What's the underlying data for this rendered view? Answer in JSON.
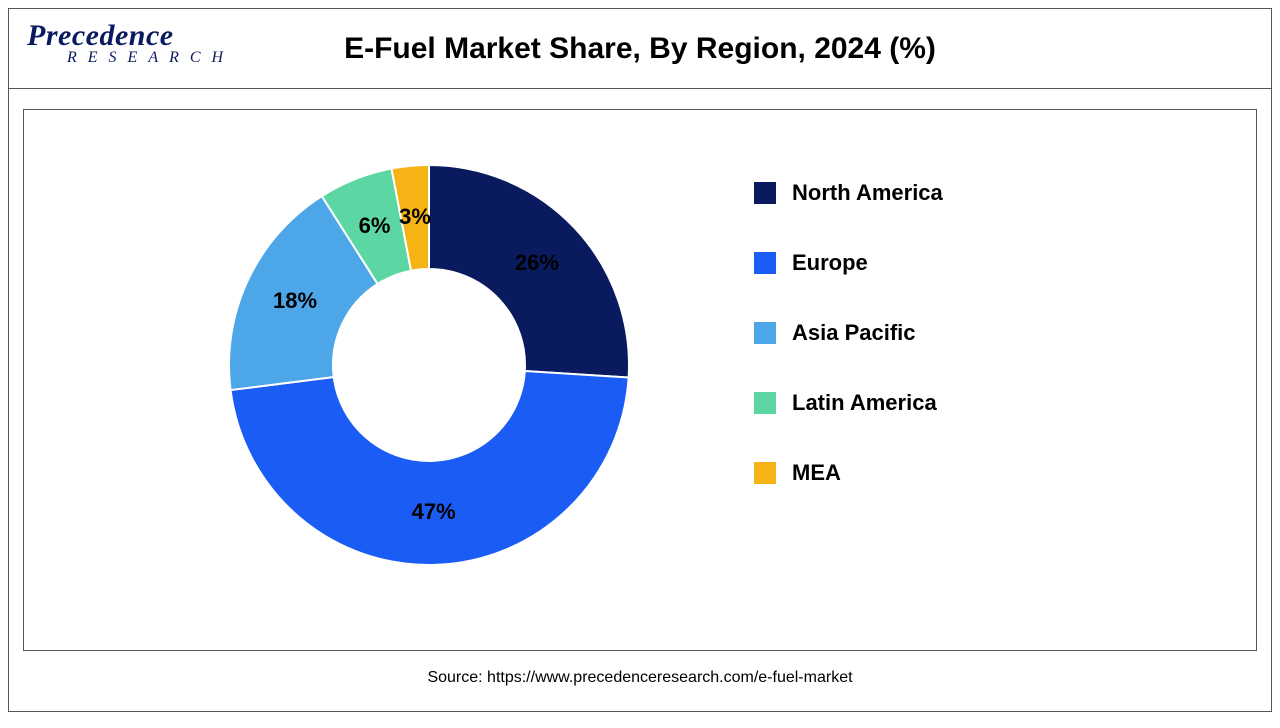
{
  "logo": {
    "main": "Precedence",
    "sub": "RESEARCH"
  },
  "chart": {
    "title": "E-Fuel Market Share, By Region, 2024 (%)",
    "type": "donut",
    "inner_radius_ratio": 0.48,
    "outer_radius": 200,
    "start_angle_deg": 0,
    "background_color": "#ffffff",
    "border_color": "#555555",
    "slice_border_color": "#ffffff",
    "slice_border_width": 2,
    "label_fontsize": 22,
    "label_fontweight": "bold",
    "label_color": "#000000",
    "slices": [
      {
        "name": "North America",
        "value": 26,
        "label": "26%",
        "color": "#0a1a5e"
      },
      {
        "name": "Europe",
        "value": 47,
        "label": "47%",
        "color": "#1b5cf5"
      },
      {
        "name": "Asia Pacific",
        "value": 18,
        "label": "18%",
        "color": "#4ca6e8"
      },
      {
        "name": "Latin America",
        "value": 6,
        "label": "6%",
        "color": "#5cd6a2"
      },
      {
        "name": "MEA",
        "value": 3,
        "label": "3%",
        "color": "#f5b316"
      }
    ]
  },
  "legend": {
    "position": "right",
    "swatch_size": 22,
    "fontsize": 22,
    "fontweight": "bold",
    "text_color": "#000000",
    "item_spacing": 44
  },
  "source": {
    "prefix": "Source: ",
    "url": "https://www.precedenceresearch.com/e-fuel-market",
    "fontsize": 16,
    "color": "#000000"
  }
}
